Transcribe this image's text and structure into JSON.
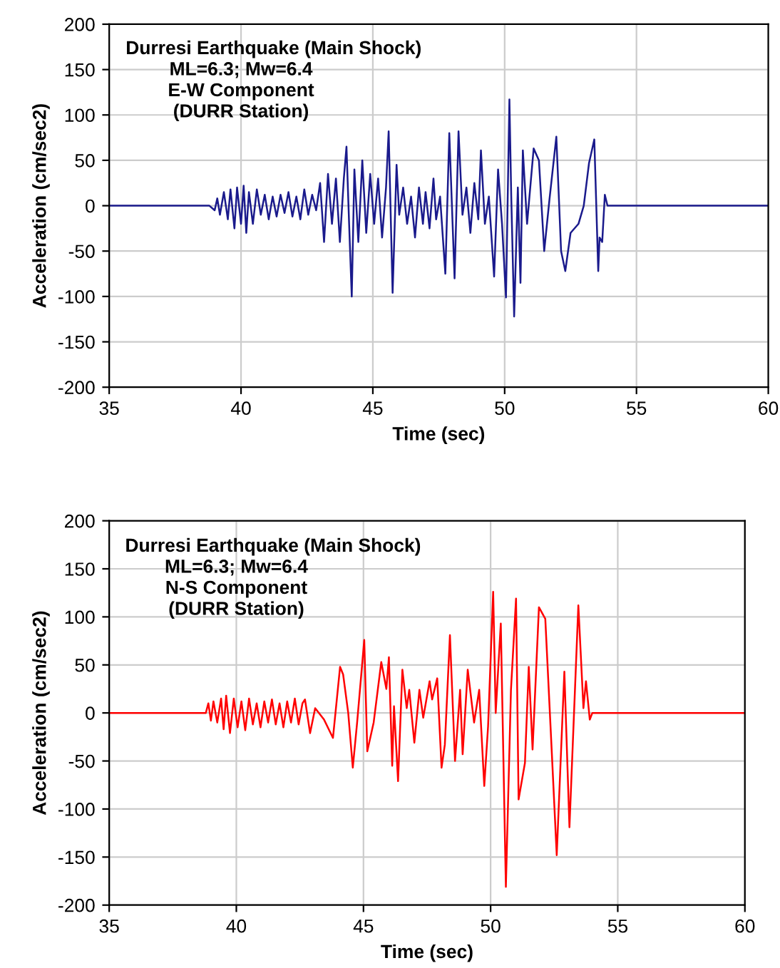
{
  "chart_data": [
    {
      "type": "line",
      "title": "Durresi Earthquake (Main Shock)",
      "annotations": [
        "ML=6.3; Mw=6.4",
        "E-W Component",
        "(DURR Station)"
      ],
      "xlabel": "Time (sec)",
      "ylabel": "Acceleration (cm/sec2)",
      "xlim": [
        35,
        60
      ],
      "ylim": [
        -200,
        200
      ],
      "xticks": [
        35,
        40,
        45,
        50,
        55,
        60
      ],
      "yticks": [
        -200,
        -150,
        -100,
        -50,
        0,
        50,
        100,
        150,
        200
      ],
      "grid": true,
      "legend": false,
      "marker": "none",
      "line_style": "solid",
      "series": [
        {
          "color": "#1a1a8c",
          "x": [
            35,
            38.8,
            39.0,
            39.1,
            39.2,
            39.35,
            39.5,
            39.6,
            39.75,
            39.85,
            40.0,
            40.1,
            40.2,
            40.3,
            40.45,
            40.6,
            40.75,
            40.9,
            41.05,
            41.2,
            41.35,
            41.5,
            41.65,
            41.8,
            41.95,
            42.1,
            42.25,
            42.4,
            42.55,
            42.7,
            42.85,
            43.0,
            43.15,
            43.3,
            43.45,
            43.6,
            43.75,
            43.9,
            44.0,
            44.1,
            44.2,
            44.3,
            44.45,
            44.6,
            44.75,
            44.9,
            45.05,
            45.2,
            45.35,
            45.5,
            45.6,
            45.75,
            45.9,
            46.0,
            46.15,
            46.3,
            46.45,
            46.6,
            46.75,
            46.9,
            47.0,
            47.15,
            47.3,
            47.4,
            47.55,
            47.75,
            47.9,
            48.1,
            48.25,
            48.4,
            48.55,
            48.7,
            48.85,
            49.0,
            49.1,
            49.25,
            49.4,
            49.6,
            49.75,
            49.9,
            50.05,
            50.18,
            50.25,
            50.36,
            50.5,
            50.6,
            50.69,
            50.85,
            51.1,
            51.3,
            51.5,
            51.7,
            51.96,
            52.14,
            52.3,
            52.5,
            52.8,
            53.0,
            53.2,
            53.3,
            53.4,
            53.55,
            53.6,
            53.7,
            53.8,
            53.9,
            60
          ],
          "values": [
            0,
            0,
            -5,
            8,
            -10,
            15,
            -15,
            18,
            -25,
            20,
            -20,
            22,
            -30,
            15,
            -20,
            18,
            -10,
            12,
            -15,
            10,
            -12,
            12,
            -8,
            15,
            -12,
            10,
            -15,
            18,
            -10,
            12,
            -5,
            25,
            -40,
            35,
            -20,
            30,
            -40,
            30,
            65,
            -20,
            -100,
            40,
            -40,
            50,
            -30,
            35,
            -20,
            30,
            -35,
            20,
            82,
            -96,
            45,
            -10,
            20,
            -20,
            10,
            -35,
            20,
            -20,
            15,
            -25,
            30,
            -15,
            10,
            -75,
            80,
            -80,
            82,
            -10,
            20,
            -30,
            25,
            -15,
            61,
            -20,
            10,
            -78,
            40,
            -20,
            -101,
            117,
            10,
            -122,
            20,
            -85,
            61,
            -20,
            63,
            50,
            -50,
            7,
            76,
            -50,
            -72,
            -30,
            -20,
            0,
            47,
            60,
            73,
            -72,
            -35,
            -40,
            12,
            0,
            0
          ]
        }
      ]
    },
    {
      "type": "line",
      "title": "Durresi Earthquake (Main Shock)",
      "annotations": [
        "ML=6.3; Mw=6.4",
        "N-S Component",
        "(DURR Station)"
      ],
      "xlabel": "Time (sec)",
      "ylabel": "Acceleration (cm/sec2)",
      "xlim": [
        35,
        60
      ],
      "ylim": [
        -200,
        200
      ],
      "xticks": [
        35,
        40,
        45,
        50,
        55,
        60
      ],
      "yticks": [
        -200,
        -150,
        -100,
        -50,
        0,
        50,
        100,
        150,
        200
      ],
      "grid": true,
      "legend": false,
      "marker": "none",
      "line_style": "solid",
      "series": [
        {
          "color": "#ff0000",
          "x": [
            35,
            38.8,
            38.9,
            39.0,
            39.1,
            39.25,
            39.4,
            39.5,
            39.6,
            39.75,
            39.9,
            40.05,
            40.2,
            40.35,
            40.5,
            40.65,
            40.8,
            40.95,
            41.1,
            41.25,
            41.4,
            41.55,
            41.7,
            41.85,
            42.0,
            42.15,
            42.3,
            42.45,
            42.6,
            42.7,
            42.9,
            43.1,
            43.45,
            43.8,
            44.08,
            44.2,
            44.4,
            44.58,
            44.75,
            45.03,
            45.15,
            45.4,
            45.7,
            45.9,
            46.0,
            46.13,
            46.2,
            46.36,
            46.53,
            46.7,
            46.8,
            47.0,
            47.2,
            47.35,
            47.6,
            47.7,
            47.9,
            48.07,
            48.2,
            48.4,
            48.6,
            48.8,
            48.9,
            49.1,
            49.35,
            49.55,
            49.75,
            49.9,
            50.1,
            50.2,
            50.4,
            50.6,
            50.8,
            51.0,
            51.1,
            51.35,
            51.5,
            51.65,
            51.9,
            52.15,
            52.4,
            52.6,
            52.9,
            53.1,
            53.45,
            53.65,
            53.75,
            53.9,
            54.0,
            60
          ],
          "values": [
            0,
            0,
            10,
            -8,
            12,
            -10,
            15,
            -17,
            18,
            -21,
            15,
            -15,
            12,
            -18,
            15,
            -12,
            10,
            -15,
            12,
            -10,
            14,
            -12,
            10,
            -15,
            12,
            -10,
            15,
            -12,
            10,
            14,
            -21,
            5,
            -7,
            -26,
            48,
            40,
            0,
            -57,
            -10,
            76,
            -40,
            -10,
            53,
            25,
            58,
            -55,
            7,
            -71,
            45,
            5,
            24,
            -31,
            24,
            -5,
            33,
            14,
            36,
            -57,
            -33,
            81,
            -50,
            24,
            -43,
            45,
            -10,
            24,
            -76,
            -14,
            126,
            0,
            93,
            -181,
            24,
            119,
            -90,
            -52,
            48,
            -38,
            110,
            98,
            -38,
            -148,
            43,
            -119,
            112,
            5,
            33,
            -7,
            0,
            0
          ]
        }
      ]
    }
  ]
}
